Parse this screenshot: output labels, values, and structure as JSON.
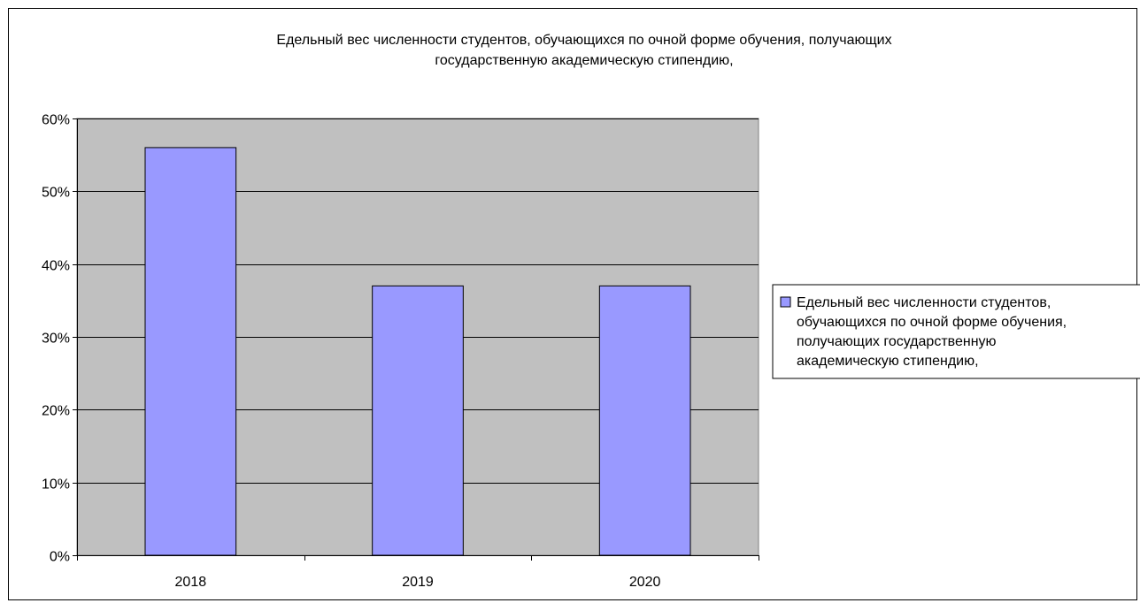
{
  "chart_data": {
    "type": "bar",
    "title": "Едельный вес численности студентов, обучающихся по очной форме обучения, получающих государственную академическую стипендию,",
    "title_lines": [
      "Едельный вес численности студентов, обучающихся по очной форме обучения, получающих",
      "государственную академическую стипендию,"
    ],
    "categories": [
      "2018",
      "2019",
      "2020"
    ],
    "series": [
      {
        "name": "Едельный вес численности студентов, обучающихся по очной форме обучения, получающих государственную академическую стипендию,",
        "legend_lines": [
          "Едельный вес численности студентов,",
          "обучающихся по очной форме обучения,",
          "получающих государственную",
          "академическую стипендию,"
        ],
        "values": [
          0.56,
          0.37,
          0.37
        ],
        "color": "#9999ff"
      }
    ],
    "ylim": [
      0,
      0.6
    ],
    "yticks": [
      0,
      0.1,
      0.2,
      0.3,
      0.4,
      0.5,
      0.6
    ],
    "ytick_labels": [
      "0%",
      "10%",
      "20%",
      "30%",
      "40%",
      "50%",
      "60%"
    ],
    "xlabel": "",
    "ylabel": "",
    "grid": true,
    "plot_background": "#c0c0c0",
    "legend_position": "right"
  }
}
